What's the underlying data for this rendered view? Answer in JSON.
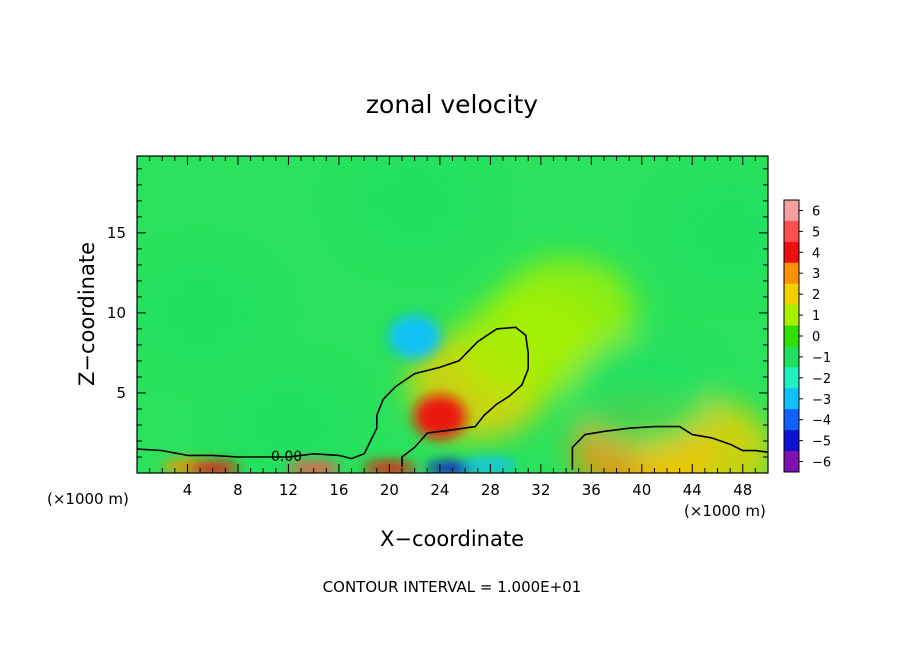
{
  "chart_data": {
    "type": "heatmap",
    "title": "zonal velocity",
    "xlabel": "X−coordinate",
    "ylabel": "Z−coordinate",
    "x_unit_label": "(×1000 m)",
    "y_unit_label": "(×1000 m)",
    "xlim": [
      0,
      50
    ],
    "ylim": [
      0,
      19.8
    ],
    "x_ticks": [
      "4",
      "8",
      "12",
      "16",
      "20",
      "24",
      "28",
      "32",
      "36",
      "40",
      "44",
      "48"
    ],
    "x_tick_values": [
      4,
      8,
      12,
      16,
      20,
      24,
      28,
      32,
      36,
      40,
      44,
      48
    ],
    "y_ticks": [
      "5",
      "10",
      "15"
    ],
    "y_tick_values": [
      5,
      10,
      15
    ],
    "colorbar": {
      "labels": [
        "6",
        "5",
        "4",
        "3",
        "2",
        "1",
        "0",
        "−1",
        "−2",
        "−3",
        "−4",
        "−5",
        "−6"
      ],
      "values": [
        6,
        5,
        4,
        3,
        2,
        1,
        0,
        -1,
        -2,
        -3,
        -4,
        -5,
        -6
      ],
      "colors": [
        "#f4a0a0",
        "#ff5050",
        "#ee1010",
        "#ff9000",
        "#f0d000",
        "#a8f000",
        "#30e000",
        "#20e060",
        "#20f0c0",
        "#10c0ff",
        "#1060ff",
        "#1010d0",
        "#8010b0"
      ]
    },
    "contour_label": "0.00",
    "contour_label_value": 0,
    "annotation": "CONTOUR INTERVAL = 1.000E+01",
    "features": [
      {
        "x": 24,
        "z": 3.5,
        "value": 3.5
      },
      {
        "x": 27,
        "z": 5.5,
        "value": 1.5
      },
      {
        "x": 31,
        "z": 8,
        "value": 0.8
      },
      {
        "x": 14,
        "z": 0.3,
        "value": 4.5
      },
      {
        "x": 4,
        "z": 0.4,
        "value": 2.5
      },
      {
        "x": 6,
        "z": 0.3,
        "value": 4
      },
      {
        "x": 20,
        "z": 0.3,
        "value": 4
      },
      {
        "x": 25,
        "z": 0.3,
        "value": -5
      },
      {
        "x": 28,
        "z": 0.5,
        "value": -3.5
      },
      {
        "x": 22,
        "z": 8.5,
        "value": -3
      },
      {
        "x": 40,
        "z": 1.5,
        "value": 2.5
      },
      {
        "x": 45,
        "z": 1.2,
        "value": 2
      },
      {
        "x": 34,
        "z": 10,
        "value": 0.5
      },
      {
        "x": 5,
        "z": 10,
        "value": -0.7
      },
      {
        "x": 22,
        "z": 17,
        "value": -1.4
      },
      {
        "x": 12,
        "z": 3,
        "value": -1.3
      },
      {
        "x": 40,
        "z": 5,
        "value": -1.5
      },
      {
        "x": 47,
        "z": 15,
        "value": -0.8
      }
    ],
    "contour_zero": [
      [
        0,
        1.5
      ],
      [
        2,
        1.4
      ],
      [
        4,
        1.1
      ],
      [
        6,
        1.1
      ],
      [
        8,
        1.0
      ],
      [
        10,
        1.0
      ],
      [
        12,
        1.0
      ],
      [
        14,
        1.2
      ],
      [
        16,
        1.1
      ],
      [
        17,
        0.9
      ],
      [
        18,
        1.2
      ],
      [
        18.5,
        2.0
      ],
      [
        19,
        2.8
      ],
      [
        19,
        3.6
      ],
      [
        19.5,
        4.6
      ],
      [
        20.5,
        5.4
      ],
      [
        22,
        6.2
      ],
      [
        24,
        6.6
      ],
      [
        25.5,
        7.0
      ],
      [
        27,
        8.2
      ],
      [
        28.5,
        9.0
      ],
      [
        30,
        9.1
      ],
      [
        30.8,
        8.6
      ],
      [
        31,
        7.5
      ],
      [
        31,
        6.5
      ],
      [
        30.5,
        5.5
      ],
      [
        29.5,
        4.8
      ],
      [
        28.5,
        4.3
      ],
      [
        27.5,
        3.6
      ],
      [
        26.8,
        2.9
      ],
      [
        25,
        2.7
      ],
      [
        23,
        2.5
      ],
      [
        22,
        1.6
      ],
      [
        21,
        1.0
      ],
      [
        21,
        0.4
      ]
    ],
    "contour_right": [
      [
        34.5,
        0.2
      ],
      [
        34.5,
        1.6
      ],
      [
        35.5,
        2.4
      ],
      [
        37,
        2.6
      ],
      [
        39,
        2.8
      ],
      [
        41,
        2.9
      ],
      [
        43,
        2.9
      ],
      [
        44,
        2.4
      ],
      [
        45.5,
        2.2
      ],
      [
        47,
        1.8
      ],
      [
        48,
        1.4
      ],
      [
        49,
        1.4
      ],
      [
        50,
        1.3
      ]
    ]
  }
}
